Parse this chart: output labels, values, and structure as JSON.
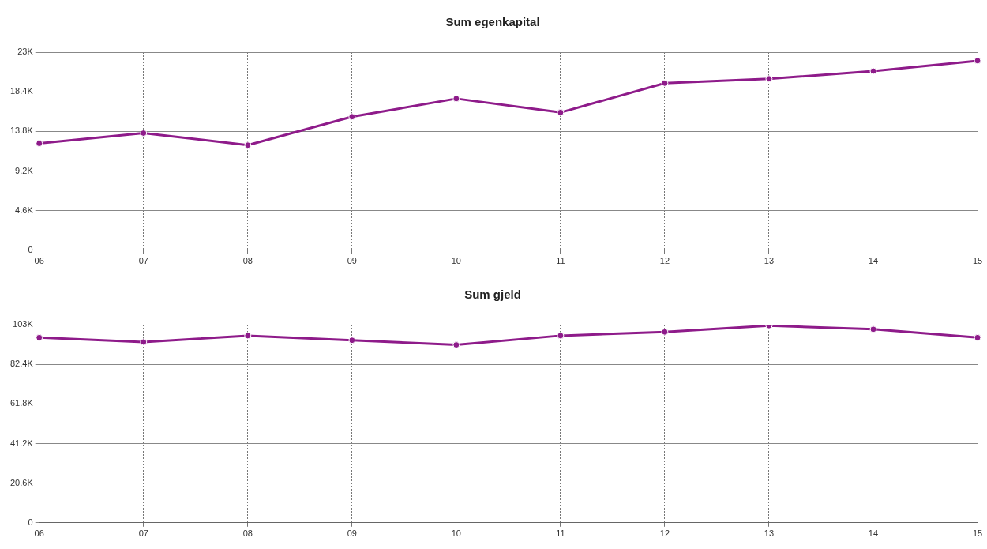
{
  "chart_data": [
    {
      "type": "line",
      "title": "Sum egenkapital",
      "categories": [
        "06",
        "07",
        "08",
        "09",
        "10",
        "11",
        "12",
        "13",
        "14",
        "15"
      ],
      "series": [
        {
          "color": "#8e1b8a",
          "values": [
            12400,
            13600,
            12200,
            15500,
            17600,
            16000,
            19400,
            19900,
            20800,
            22000
          ]
        }
      ],
      "ylim": [
        0,
        23000
      ],
      "yticks": [
        0,
        {
          "value": 4600,
          "label": "4.6K"
        },
        {
          "value": 9200,
          "label": "9.2K"
        },
        {
          "value": 13800,
          "label": "13.8K"
        },
        {
          "value": 18400,
          "label": "18.4K"
        },
        {
          "value": 23000,
          "label": "23K"
        }
      ],
      "grid": true,
      "legend": false,
      "marker": "circle",
      "line_style": "solid"
    },
    {
      "type": "line",
      "title": "Sum gjeld",
      "categories": [
        "06",
        "07",
        "08",
        "09",
        "10",
        "11",
        "12",
        "13",
        "14",
        "15"
      ],
      "series": [
        {
          "color": "#8e1b8a",
          "values": [
            96300,
            94000,
            97300,
            94900,
            92500,
            97300,
            99200,
            102500,
            100600,
            96300
          ]
        }
      ],
      "ylim": [
        0,
        103000
      ],
      "yticks": [
        0,
        {
          "value": 20600,
          "label": "20.6K"
        },
        {
          "value": 41200,
          "label": "41.2K"
        },
        {
          "value": 61800,
          "label": "61.8K"
        },
        {
          "value": 82400,
          "label": "82.4K"
        },
        {
          "value": 103000,
          "label": "103K"
        }
      ],
      "grid": true,
      "legend": false,
      "marker": "circle",
      "line_style": "solid"
    }
  ]
}
